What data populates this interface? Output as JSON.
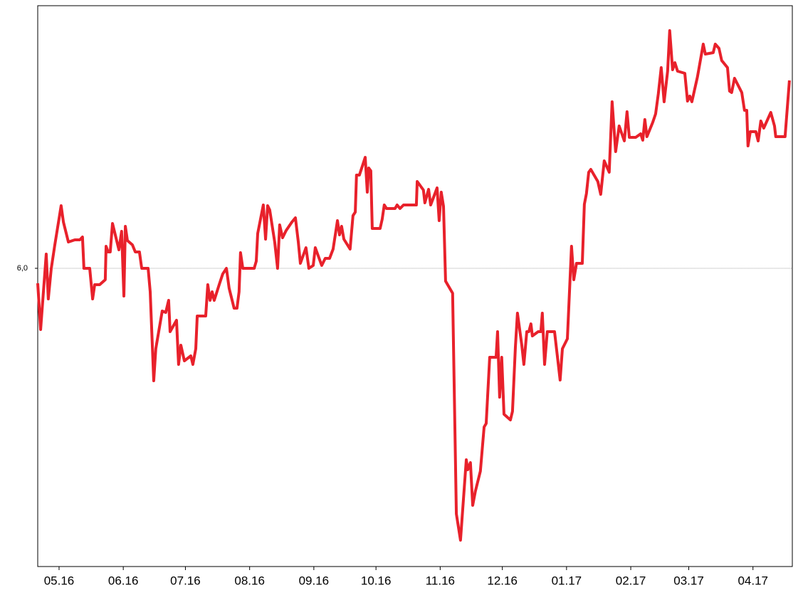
{
  "chart_data": {
    "type": "line",
    "x": [
      -10.3,
      -8.9,
      -6.2,
      -5.2,
      -3.8,
      -2.1,
      1.0,
      2.1,
      4.5,
      7.6,
      10.0,
      11.3,
      12.0,
      14.8,
      16.2,
      17.2,
      19.6,
      22.3,
      22.7,
      23.7,
      24.7,
      25.8,
      28.9,
      30.2,
      31.3,
      32.0,
      33.0,
      35.4,
      36.8,
      38.8,
      39.9,
      43.0,
      44.0,
      45.7,
      46.7,
      49.8,
      51.5,
      52.9,
      53.6,
      56.7,
      57.7,
      58.8,
      60.5,
      63.6,
      64.6,
      66.0,
      66.7,
      70.8,
      71.8,
      72.9,
      73.9,
      74.9,
      77.3,
      79.0,
      80.8,
      82.1,
      84.5,
      85.9,
      86.9,
      87.6,
      88.7,
      94.2,
      95.2,
      95.9,
      98.6,
      99.7,
      100.7,
      101.7,
      104.1,
      105.5,
      106.5,
      107.9,
      109.6,
      112.4,
      114.1,
      115.5,
      116.5,
      119.2,
      120.6,
      122.7,
      123.7,
      126.8,
      128.5,
      130.6,
      132.3,
      134.4,
      135.4,
      136.4,
      137.5,
      140.5,
      141.9,
      143.0,
      143.6,
      145.0,
      147.8,
      148.8,
      149.5,
      150.5,
      151.2,
      155.0,
      156.0,
      157.0,
      158.1,
      162.2,
      163.2,
      164.6,
      166.3,
      172.5,
      172.9,
      175.9,
      176.6,
      178.4,
      179.4,
      182.5,
      183.5,
      184.5,
      185.6,
      186.6,
      190.0,
      191.8,
      193.8,
      196.6,
      197.3,
      198.6,
      199.7,
      201.0,
      203.4,
      205.2,
      206.2,
      207.9,
      211.0,
      211.7,
      212.7,
      213.7,
      214.8,
      217.9,
      218.9,
      220.3,
      221.3,
      223.4,
      224.4,
      225.8,
      226.8,
      227.8,
      228.5,
      231.3,
      232.6,
      233.3,
      234.4,
      235.7,
      239.2,
      241.9,
      243.0,
      245.4,
      247.4,
      248.5,
      249.8,
      252.6,
      253.6,
      254.6,
      255.7,
      256.7,
      260.1,
      261.5,
      263.2,
      265.6,
      267.0,
      268.7,
      270.4,
      272.9,
      274.2,
      275.3,
      278.4,
      280.8,
      281.8,
      282.8,
      283.8,
      286.6,
      288.0,
      289.3,
      290.7,
      292.1,
      293.8,
      294.8,
      296.2,
      297.3,
      298.6,
      302.1,
      303.4,
      304.5,
      305.5,
      308.2,
      311.0,
      312.0,
      315.8,
      316.8,
      318.6,
      319.9,
      322.7,
      323.7,
      324.7,
      326.1,
      329.6,
      330.9,
      332.0,
      332.6,
      333.7,
      336.4,
      337.5,
      338.8,
      340.2,
      343.6,
      345.4,
      346.0,
      350.5,
      352.6
    ],
    "series": [
      {
        "color": "#e8212b",
        "values": [
          5.895,
          5.57,
          6.1,
          5.785,
          5.995,
          6.16,
          6.44,
          6.325,
          6.185,
          6.2,
          6.2,
          6.22,
          6,
          6,
          5.785,
          5.885,
          5.885,
          5.92,
          6.155,
          6.115,
          6.115,
          6.315,
          6.13,
          6.26,
          5.805,
          6.295,
          6.195,
          6.165,
          6.115,
          6.115,
          6,
          6,
          5.835,
          5.21,
          5.435,
          5.7,
          5.69,
          5.775,
          5.555,
          5.635,
          5.325,
          5.46,
          5.35,
          5.385,
          5.325,
          5.435,
          5.665,
          5.665,
          5.885,
          5.775,
          5.835,
          5.775,
          5.885,
          5.96,
          6,
          5.86,
          5.72,
          5.72,
          5.835,
          6.11,
          6,
          6,
          6.05,
          6.245,
          6.445,
          6.205,
          6.44,
          6.41,
          6.185,
          6,
          6.305,
          6.215,
          6.265,
          6.325,
          6.355,
          6.185,
          6.035,
          6.145,
          6,
          6.02,
          6.145,
          6.02,
          6.07,
          6.07,
          6.135,
          6.335,
          6.235,
          6.295,
          6.205,
          6.135,
          6.37,
          6.395,
          6.655,
          6.655,
          6.78,
          6.535,
          6.705,
          6.685,
          6.28,
          6.28,
          6.345,
          6.445,
          6.42,
          6.42,
          6.445,
          6.42,
          6.445,
          6.445,
          6.61,
          6.55,
          6.46,
          6.555,
          6.445,
          6.565,
          6.335,
          6.535,
          6.435,
          5.91,
          5.825,
          4.275,
          4.09,
          4.655,
          4.585,
          4.635,
          4.335,
          4.435,
          4.575,
          4.885,
          4.91,
          5.375,
          5.375,
          5.555,
          5.095,
          5.375,
          4.975,
          4.935,
          4.995,
          5.445,
          5.685,
          5.46,
          5.325,
          5.555,
          5.555,
          5.61,
          5.525,
          5.555,
          5.555,
          5.685,
          5.325,
          5.555,
          5.555,
          5.215,
          5.435,
          5.505,
          6.155,
          5.92,
          6.035,
          6.035,
          6.45,
          6.525,
          6.675,
          6.695,
          6.61,
          6.52,
          6.755,
          6.675,
          7.17,
          6.82,
          7.0,
          6.895,
          7.1,
          6.92,
          6.92,
          6.945,
          6.9,
          7.045,
          6.925,
          7.025,
          7.085,
          7.225,
          7.41,
          7.17,
          7.385,
          7.67,
          7.395,
          7.445,
          7.385,
          7.37,
          7.175,
          7.21,
          7.17,
          7.345,
          7.575,
          7.505,
          7.515,
          7.575,
          7.545,
          7.46,
          7.41,
          7.245,
          7.235,
          7.335,
          7.235,
          7.11,
          7.11,
          6.86,
          6.96,
          6.96,
          6.895,
          7.035,
          6.985,
          7.095,
          7.0,
          6.925,
          6.925,
          7.32
        ]
      }
    ],
    "xlim": [
      -10.3,
      354
    ],
    "xticks": [
      {
        "value": 0,
        "label": "05.16"
      },
      {
        "value": 31,
        "label": "06.16"
      },
      {
        "value": 61,
        "label": "07.16"
      },
      {
        "value": 92,
        "label": "08.16"
      },
      {
        "value": 123,
        "label": "09.16"
      },
      {
        "value": 153,
        "label": "10.16"
      },
      {
        "value": 184,
        "label": "11.16"
      },
      {
        "value": 214,
        "label": "12.16"
      },
      {
        "value": 245,
        "label": "01.17"
      },
      {
        "value": 276,
        "label": "02.17"
      },
      {
        "value": 304,
        "label": "03.17"
      },
      {
        "value": 335,
        "label": "04.17"
      }
    ],
    "ylim": [
      3.905,
      7.845
    ],
    "yticks": [
      {
        "value": 6,
        "label": "6,0"
      }
    ],
    "grid": true
  }
}
